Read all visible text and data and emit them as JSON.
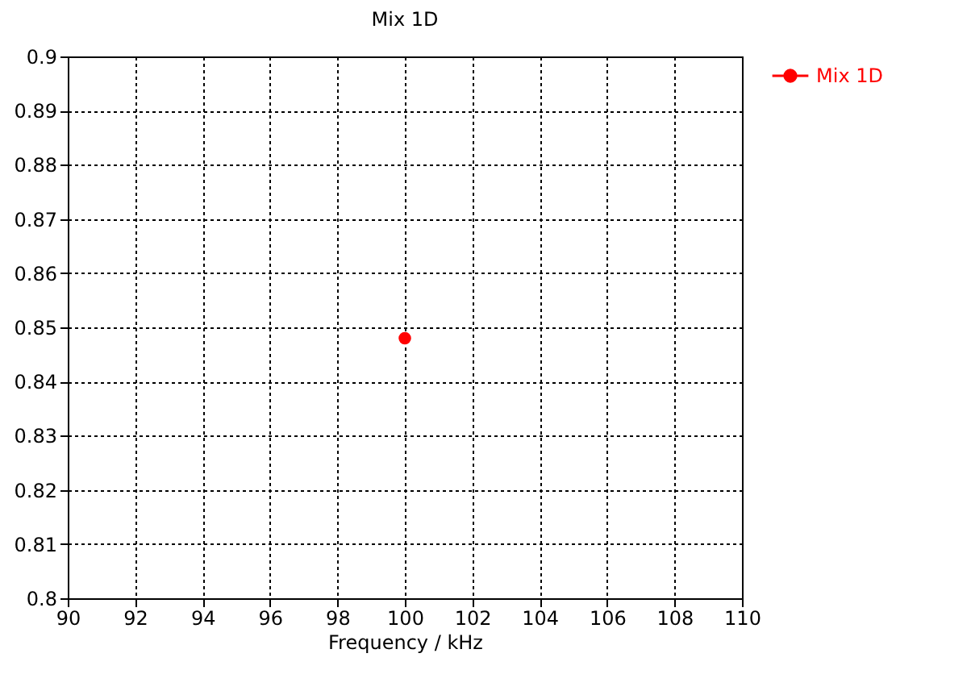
{
  "chart_data": {
    "type": "line",
    "title": "Mix 1D",
    "xlabel": "Frequency / kHz",
    "x": [
      100
    ],
    "series": [
      {
        "name": "Mix 1D",
        "color": "#ff0000",
        "values": [
          0.848
        ]
      }
    ],
    "xlim": [
      90,
      110
    ],
    "xticks": [
      90,
      92,
      94,
      96,
      98,
      100,
      102,
      104,
      106,
      108,
      110
    ],
    "ylim": [
      0.8,
      0.9
    ],
    "yticks": [
      0.8,
      0.81,
      0.82,
      0.83,
      0.84,
      0.85,
      0.86,
      0.87,
      0.88,
      0.89,
      0.9
    ],
    "grid": true,
    "legend": "right",
    "marker": "circle",
    "line_style": "solid"
  }
}
